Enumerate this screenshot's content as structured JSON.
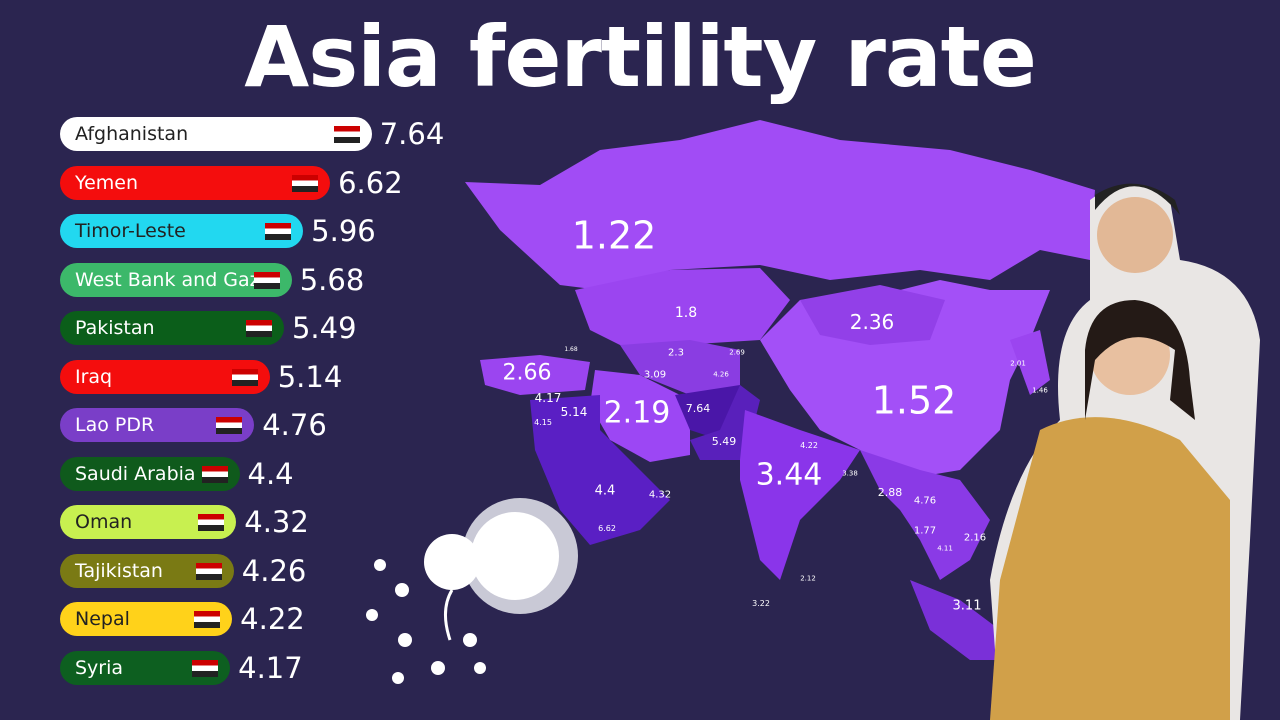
{
  "title": "Asia fertility rate",
  "chart_data": {
    "type": "bar",
    "orientation": "horizontal",
    "title": "Asia fertility rate",
    "categories": [
      "Afghanistan",
      "Yemen",
      "Timor-Leste",
      "West Bank and Gaza",
      "Pakistan",
      "Iraq",
      "Lao PDR",
      "Saudi Arabia",
      "Oman",
      "Tajikistan",
      "Nepal",
      "Syria"
    ],
    "values": [
      7.64,
      6.62,
      5.96,
      5.68,
      5.49,
      5.14,
      4.76,
      4.4,
      4.32,
      4.26,
      4.22,
      4.17
    ],
    "colors": [
      "#ffffff",
      "#f40d0d",
      "#22d8f0",
      "#3cb86a",
      "#0b5e1a",
      "#f40d0d",
      "#7a3ec8",
      "#0f5a1c",
      "#c8f050",
      "#7a7a14",
      "#ffd21a",
      "#0d5f20"
    ],
    "label_colors": [
      "#222222",
      "#ffffff",
      "#222222",
      "#ffffff",
      "#ffffff",
      "#ffffff",
      "#ffffff",
      "#ffffff",
      "#222222",
      "#ffffff",
      "#222222",
      "#ffffff"
    ],
    "map_labels": [
      "1.22",
      "1.8",
      "2.36",
      "1.52",
      "2.66",
      "2.19",
      "3.44",
      "7.64",
      "5.49",
      "5.14",
      "4.17",
      "4.15",
      "4.4",
      "4.32",
      "6.62",
      "3.09",
      "2.3",
      "2.69",
      "4.26",
      "4.22",
      "3.38",
      "2.88",
      "4.76",
      "1.77",
      "4.11",
      "2.16",
      "3.11",
      "3.22",
      "2.12",
      "2.01",
      "1.46",
      "1.68"
    ]
  }
}
